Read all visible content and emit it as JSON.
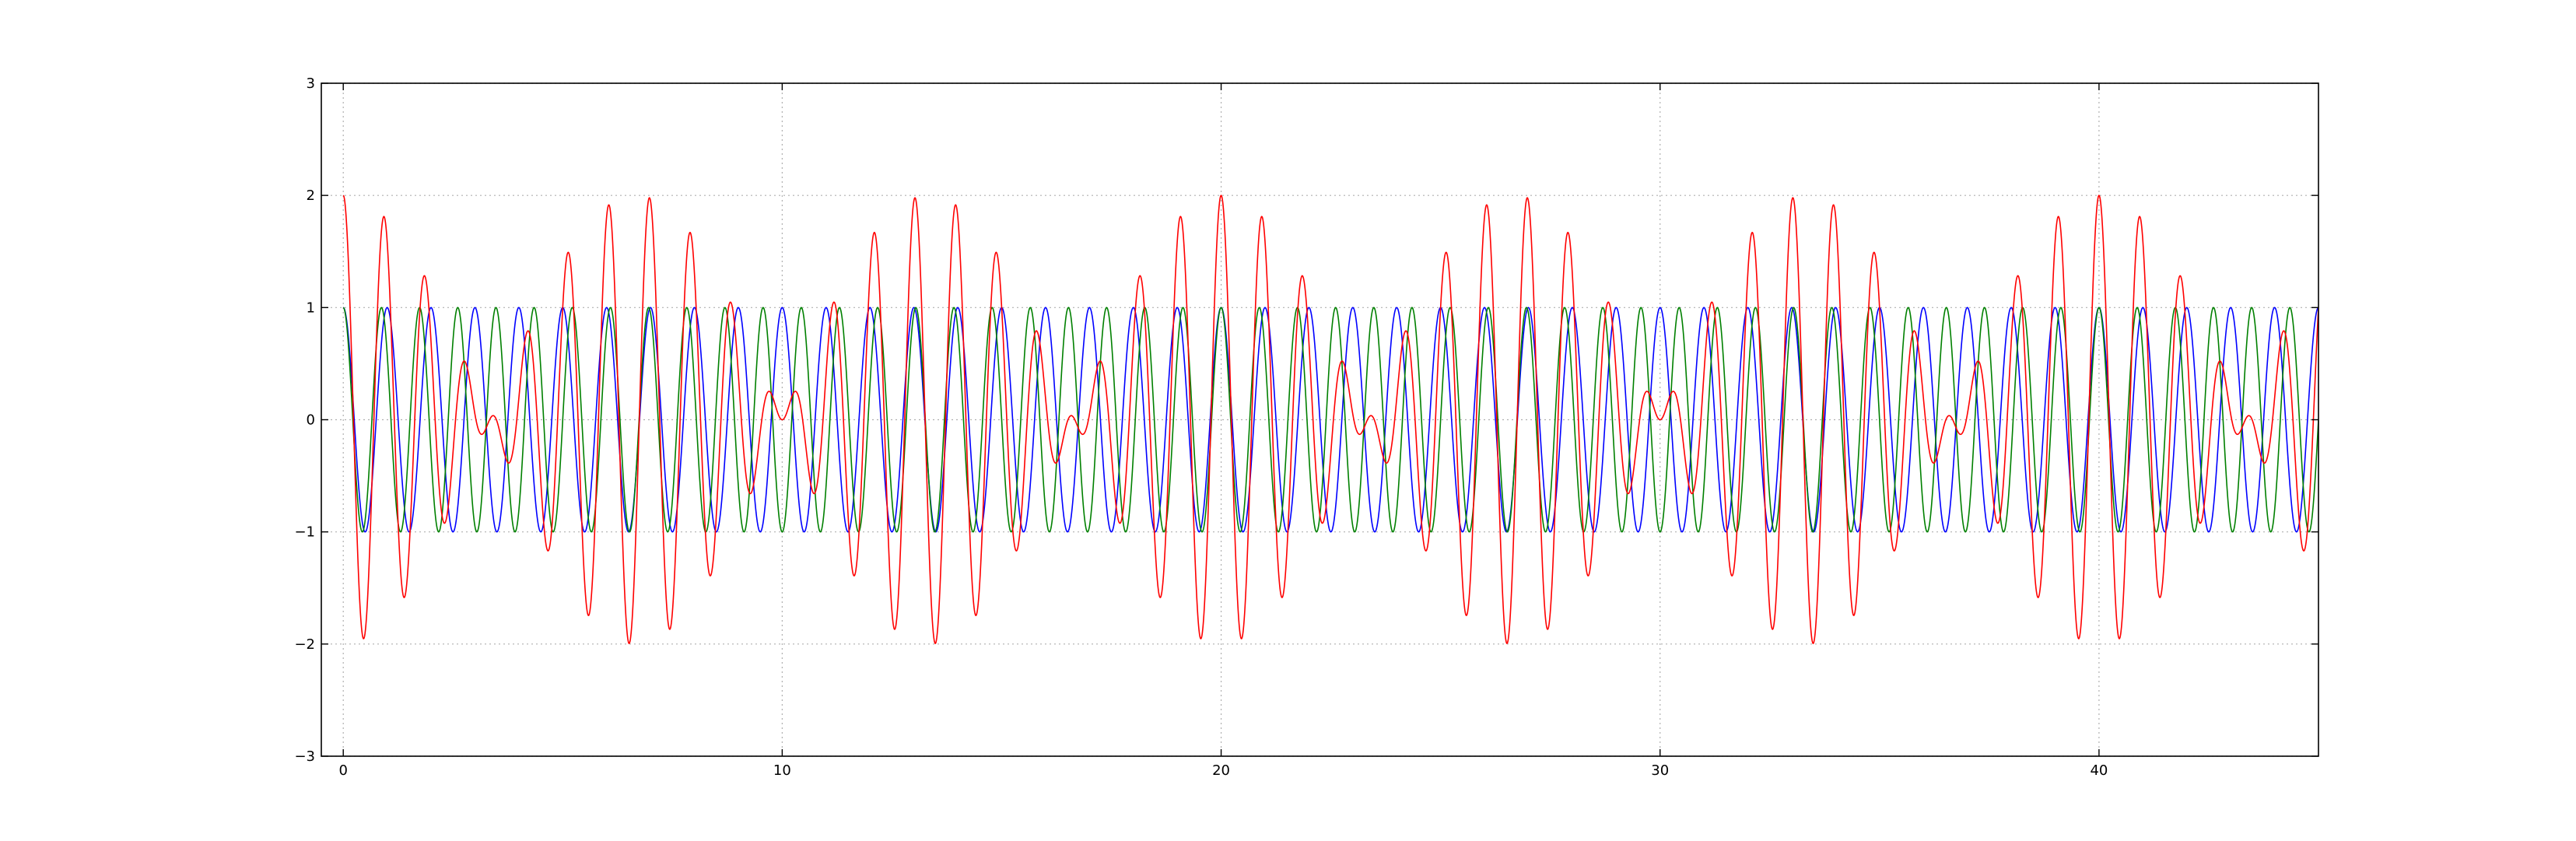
{
  "chart_data": {
    "type": "line",
    "title": "",
    "xlabel": "",
    "ylabel": "",
    "xlim": [
      -0.5,
      45
    ],
    "ylim": [
      -3,
      3
    ],
    "xticks": [
      0,
      10,
      20,
      30,
      40
    ],
    "yticks": [
      -3,
      -2,
      -1,
      0,
      1,
      2,
      3
    ],
    "xtick_labels": [
      "0",
      "10",
      "20",
      "30",
      "40"
    ],
    "ytick_labels": [
      "−3",
      "−2",
      "−1",
      "0",
      "1",
      "2",
      "3"
    ],
    "grid": true,
    "legend": "none",
    "series": [
      {
        "color": "#0000ff",
        "function": "cos(2*pi*1.0*x)",
        "frequency": 1.0,
        "amplitude": 1,
        "x_start": 0,
        "x_end": 45
      },
      {
        "color": "#008000",
        "function": "cos(2*pi*1.15*x)",
        "frequency": 1.15,
        "amplitude": 1,
        "x_start": 0,
        "x_end": 45
      },
      {
        "color": "#ff0000",
        "function": "cos(2*pi*1.0*x) + cos(2*pi*1.15*x)",
        "frequencies": [
          1.0,
          1.15
        ],
        "amplitude": 2,
        "x_start": 0,
        "x_end": 45
      }
    ]
  }
}
